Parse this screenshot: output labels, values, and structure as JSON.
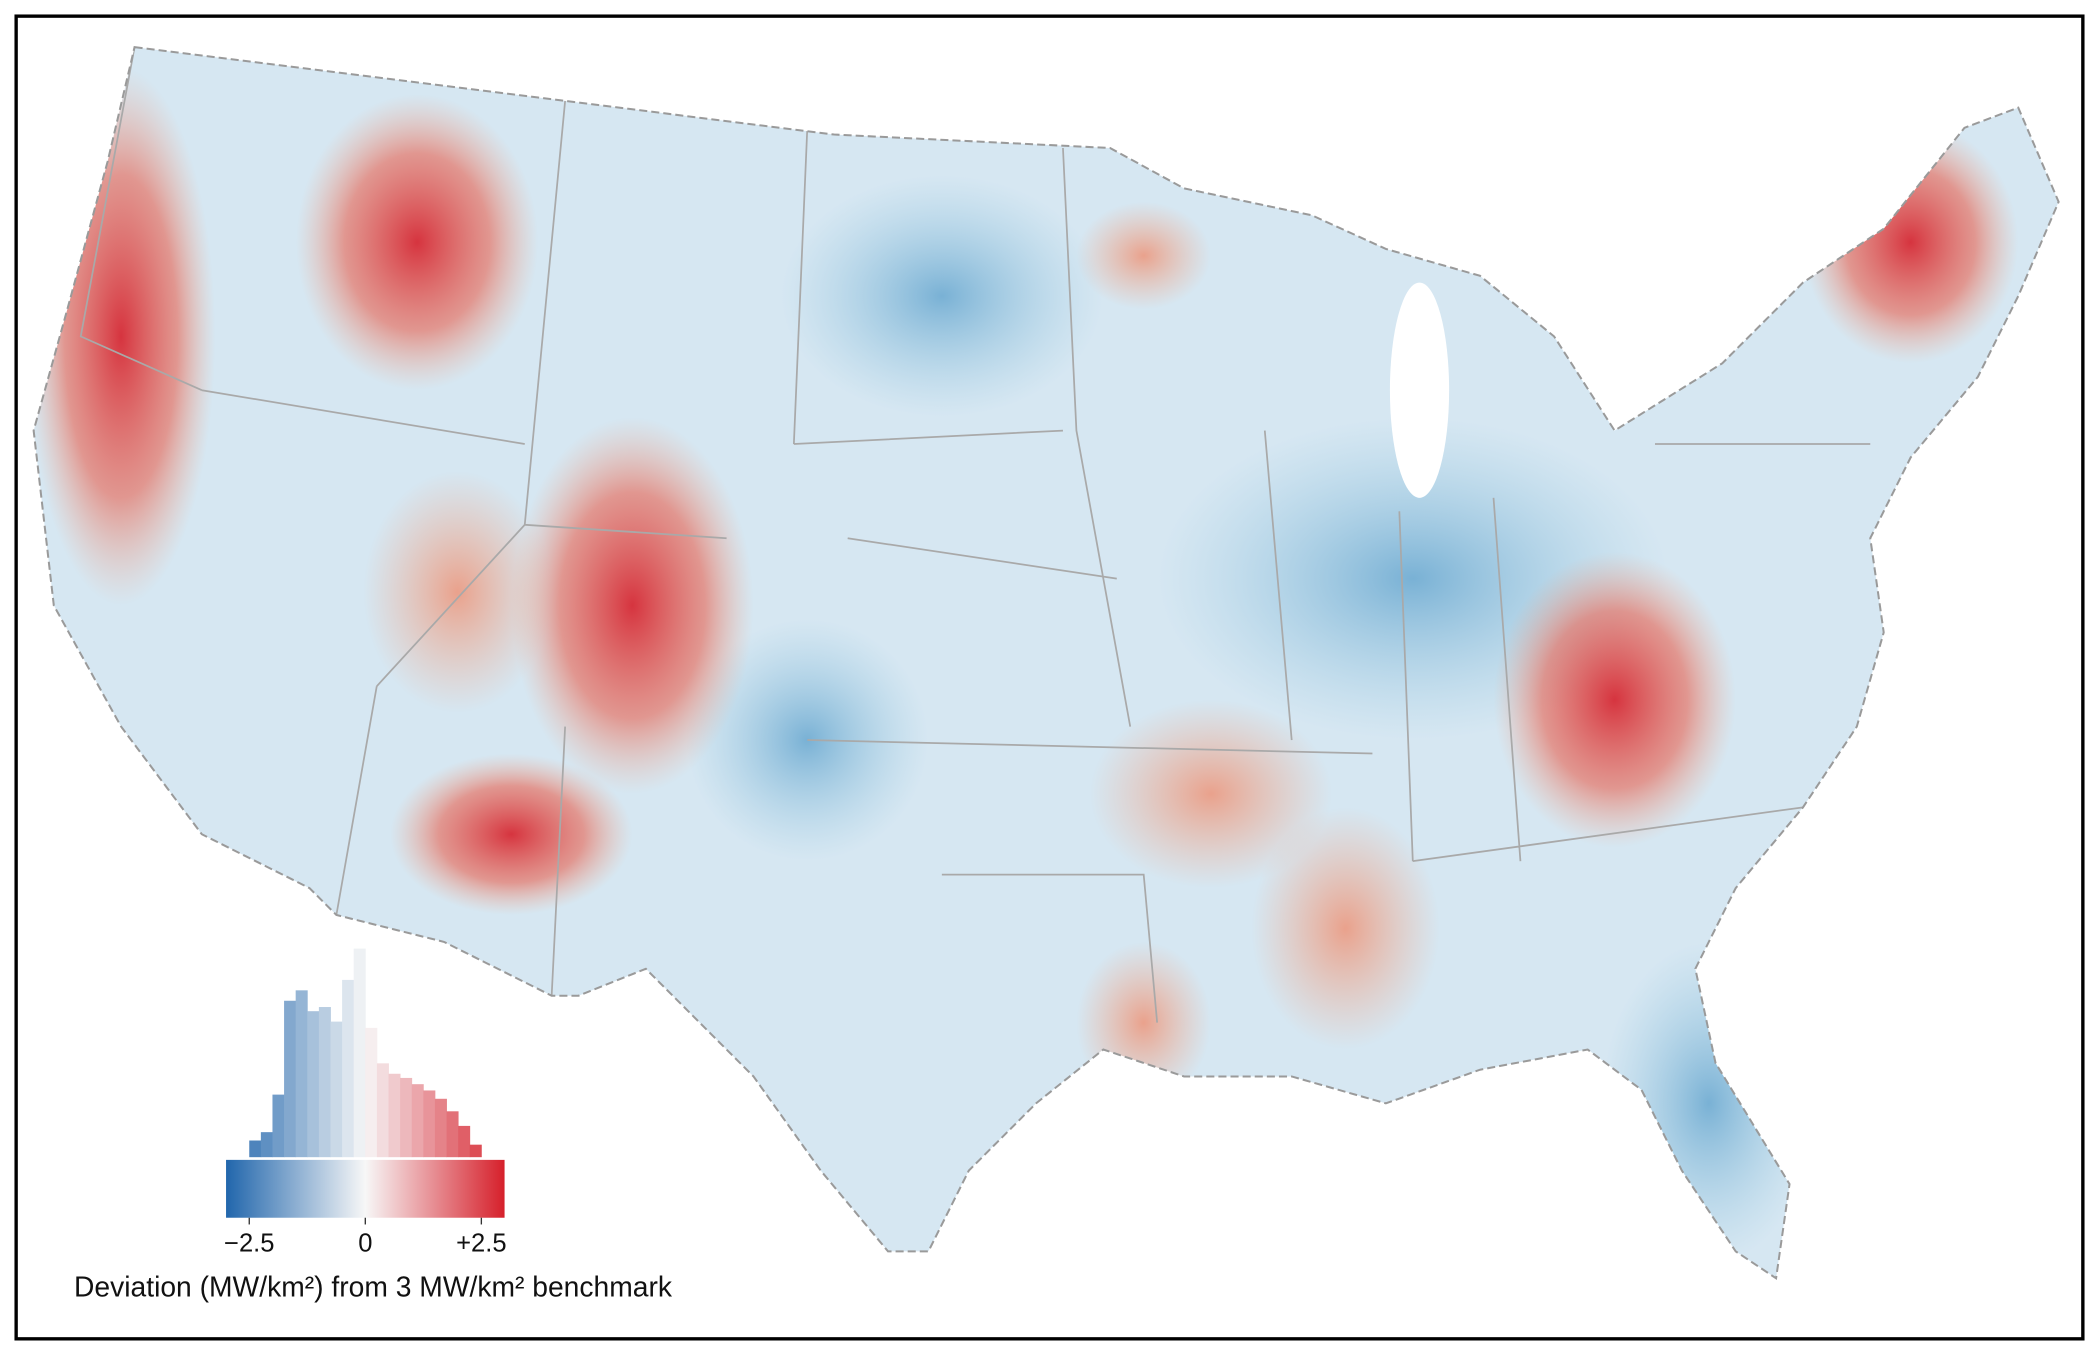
{
  "legend": {
    "title": "Deviation (MW/km²) from 3 MW/km² benchmark",
    "lim": [
      -3,
      3
    ],
    "ticks": [
      {
        "value": -2.5,
        "label": "−2.5"
      },
      0,
      {
        "value": 2.5,
        "label": "+2.5"
      }
    ],
    "colors": [
      "#2166ac",
      "#f7f7f7",
      "#d6202b"
    ],
    "histogram": {
      "bins": [
        -2.5,
        -2.25,
        -2,
        -1.75,
        -1.5,
        -1.25,
        -1,
        -0.75,
        -0.5,
        -0.25,
        0,
        0.25,
        0.5,
        0.75,
        1,
        1.25,
        1.5,
        1.75,
        2,
        2.25,
        2.5
      ],
      "counts": [
        8,
        12,
        30,
        75,
        80,
        70,
        72,
        65,
        85,
        100,
        62,
        45,
        40,
        38,
        35,
        32,
        28,
        22,
        15,
        6
      ],
      "ylim": [
        0,
        100
      ]
    }
  }
}
